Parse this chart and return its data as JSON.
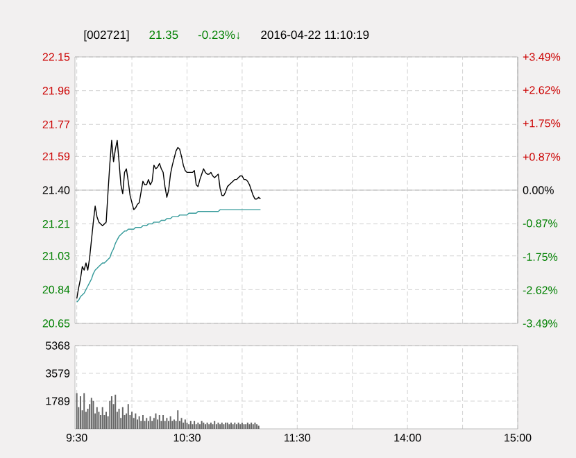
{
  "chart_data": [
    {
      "type": "line",
      "title": "[002721]",
      "annotations": [
        "21.35",
        "-0.23%↓",
        "2016-04-22 11:10:19"
      ],
      "categories": [
        null,
        null,
        null,
        null,
        null,
        null,
        null,
        null,
        null,
        null,
        null,
        null,
        null,
        null,
        null,
        null,
        null,
        null,
        null,
        null,
        null,
        null,
        null,
        null,
        null,
        null,
        null,
        null,
        null,
        null,
        null,
        null,
        null,
        null,
        null,
        null,
        null,
        null,
        null,
        null,
        null,
        null,
        null,
        null,
        null,
        null,
        null,
        null,
        null,
        null,
        null,
        null,
        null,
        null,
        null,
        null,
        null,
        null,
        null,
        null,
        null,
        null,
        null,
        null,
        null,
        null,
        null,
        null,
        null,
        null,
        null,
        null,
        null,
        null,
        null,
        null,
        null,
        null,
        null,
        null,
        null,
        null,
        null,
        null,
        null,
        null,
        null,
        null,
        null,
        null,
        null,
        null,
        null,
        null,
        null,
        null,
        null,
        null,
        null,
        null,
        null,
        null,
        null,
        null,
        null,
        null,
        null,
        null,
        null,
        null,
        null,
        null,
        null,
        null,
        null,
        null,
        null,
        null,
        null,
        null,
        null,
        null,
        null,
        null,
        null,
        null,
        null,
        null,
        null,
        null,
        null,
        null,
        null,
        null,
        null,
        null,
        null,
        null,
        null,
        null,
        null,
        null,
        null,
        null,
        null,
        null,
        null,
        null,
        null,
        null,
        null,
        null,
        null,
        null,
        null,
        null,
        null,
        null,
        null,
        null,
        null,
        null,
        null,
        null,
        null,
        null,
        null,
        null,
        null,
        null,
        null,
        null,
        null,
        null,
        null,
        null,
        null,
        null,
        null,
        null,
        null,
        null,
        null,
        null,
        null,
        null,
        null,
        null,
        null,
        null,
        null,
        null,
        null,
        null,
        null,
        null,
        null,
        null,
        null,
        null,
        null,
        null,
        null,
        null,
        null,
        null,
        null,
        null,
        null,
        null,
        null,
        null,
        null,
        null,
        null,
        null,
        null,
        null,
        null,
        null,
        null,
        null,
        null,
        null,
        null,
        null,
        null,
        null,
        null,
        null,
        null,
        null,
        null,
        null,
        null,
        null,
        null,
        null,
        null,
        null,
        null
      ],
      "ylim": [
        20.65,
        22.15
      ],
      "yticks": [
        20.65,
        20.84,
        21.03,
        21.21,
        {
          "value": 21.4,
          "label": "21.40"
        },
        21.59,
        21.77,
        21.96,
        22.15
      ],
      "y2lim": [
        -3.49,
        3.49
      ],
      "y2ticks": [
        {
          "value": -3.49,
          "label": "-3.49%"
        },
        {
          "value": -2.62,
          "label": "-2.62%"
        },
        {
          "value": -1.75,
          "label": "-1.75%"
        },
        {
          "value": -0.87,
          "label": "-0.87%"
        },
        {
          "value": 0,
          "label": "0.00%"
        },
        {
          "value": 0.87,
          "label": "+0.87%"
        },
        {
          "value": 1.75,
          "label": "+1.75%"
        },
        {
          "value": 2.62,
          "label": "+2.62%"
        },
        {
          "value": 3.49,
          "label": "+3.49%"
        }
      ],
      "grid": true,
      "tick_labels": "y",
      "ref_lines": [
        {
          "axis": "y",
          "value": 21.4,
          "color": "#b0b0b0"
        }
      ],
      "series": [
        {
          "color": "#000000",
          "values": [
            20.79,
            20.85,
            20.9,
            20.97,
            20.95,
            20.99,
            20.95,
            21.02,
            21.12,
            21.22,
            21.31,
            21.25,
            21.22,
            21.21,
            21.2,
            21.21,
            21.22,
            21.39,
            21.55,
            21.68,
            21.56,
            21.63,
            21.68,
            21.56,
            21.43,
            21.38,
            21.5,
            21.52,
            21.45,
            21.37,
            21.33,
            21.29,
            21.3,
            21.32,
            21.33,
            21.39,
            21.45,
            21.43,
            21.43,
            21.46,
            21.43,
            21.45,
            21.54,
            21.52,
            21.53,
            21.55,
            21.52,
            21.5,
            21.42,
            21.36,
            21.4,
            21.49,
            21.54,
            21.58,
            21.62,
            21.64,
            21.63,
            21.59,
            21.54,
            21.51,
            21.5,
            21.5,
            21.5,
            21.5,
            21.51,
            21.43,
            21.42,
            21.46,
            21.49,
            21.52,
            21.5,
            21.49,
            21.49,
            21.5,
            21.48,
            21.47,
            21.48,
            21.49,
            21.41,
            21.37,
            21.37,
            21.39,
            21.42,
            21.43,
            21.44,
            21.45,
            21.46,
            21.46,
            21.47,
            21.48,
            21.48,
            21.46,
            21.46,
            21.45,
            21.43,
            21.4,
            21.37,
            21.35,
            21.35,
            21.36,
            21.35,
            null,
            null,
            null,
            null,
            null,
            null,
            null,
            null,
            null,
            null,
            null,
            null,
            null,
            null,
            null,
            null,
            null,
            null,
            null,
            null,
            null,
            null,
            null,
            null,
            null,
            null,
            null,
            null,
            null,
            null,
            null,
            null,
            null,
            null,
            null,
            null,
            null,
            null,
            null,
            null,
            null,
            null,
            null,
            null,
            null,
            null,
            null,
            null,
            null,
            null,
            null,
            null,
            null,
            null,
            null,
            null,
            null,
            null,
            null,
            null,
            null,
            null,
            null,
            null,
            null,
            null,
            null,
            null,
            null,
            null,
            null,
            null,
            null,
            null,
            null,
            null,
            null,
            null,
            null,
            null,
            null,
            null,
            null,
            null,
            null,
            null,
            null,
            null,
            null,
            null,
            null,
            null,
            null,
            null,
            null,
            null,
            null,
            null,
            null,
            null,
            null,
            null,
            null,
            null,
            null,
            null,
            null,
            null,
            null,
            null,
            null,
            null,
            null,
            null,
            null,
            null,
            null,
            null,
            null,
            null,
            null,
            null,
            null,
            null,
            null,
            null,
            null,
            null,
            null,
            null,
            null,
            null,
            null,
            null,
            null,
            null,
            null,
            null,
            null,
            null
          ]
        },
        {
          "color": "#339999",
          "values": [
            20.77,
            20.78,
            20.8,
            20.81,
            20.82,
            20.84,
            20.86,
            20.88,
            20.9,
            20.93,
            20.95,
            20.96,
            20.97,
            20.98,
            20.99,
            20.99,
            21.0,
            21.01,
            21.02,
            21.05,
            21.07,
            21.1,
            21.12,
            21.14,
            21.15,
            21.16,
            21.17,
            21.17,
            21.18,
            21.18,
            21.18,
            21.18,
            21.19,
            21.19,
            21.19,
            21.19,
            21.2,
            21.2,
            21.2,
            21.21,
            21.21,
            21.21,
            21.22,
            21.22,
            21.22,
            21.22,
            21.23,
            21.23,
            21.23,
            21.24,
            21.24,
            21.24,
            21.25,
            21.25,
            21.25,
            21.25,
            21.26,
            21.26,
            21.26,
            21.26,
            21.26,
            21.27,
            21.27,
            21.27,
            21.27,
            21.27,
            21.28,
            21.28,
            21.28,
            21.28,
            21.28,
            21.28,
            21.28,
            21.28,
            21.28,
            21.28,
            21.28,
            21.28,
            21.29,
            21.29,
            21.29,
            21.29,
            21.29,
            21.29,
            21.29,
            21.29,
            21.29,
            21.29,
            21.29,
            21.29,
            21.29,
            21.29,
            21.29,
            21.29,
            21.29,
            21.29,
            21.29,
            21.29,
            21.29,
            21.29,
            21.29,
            null,
            null,
            null,
            null,
            null,
            null,
            null,
            null,
            null,
            null,
            null,
            null,
            null,
            null,
            null,
            null,
            null,
            null,
            null,
            null,
            null,
            null,
            null,
            null,
            null,
            null,
            null,
            null,
            null,
            null,
            null,
            null,
            null,
            null,
            null,
            null,
            null,
            null,
            null,
            null,
            null,
            null,
            null,
            null,
            null,
            null,
            null,
            null,
            null,
            null,
            null,
            null,
            null,
            null,
            null,
            null,
            null,
            null,
            null,
            null,
            null,
            null,
            null,
            null,
            null,
            null,
            null,
            null,
            null,
            null,
            null,
            null,
            null,
            null,
            null,
            null,
            null,
            null,
            null,
            null,
            null,
            null,
            null,
            null,
            null,
            null,
            null,
            null,
            null,
            null,
            null,
            null,
            null,
            null,
            null,
            null,
            null,
            null,
            null,
            null,
            null,
            null,
            null,
            null,
            null,
            null,
            null,
            null,
            null,
            null,
            null,
            null,
            null,
            null,
            null,
            null,
            null,
            null,
            null,
            null,
            null,
            null,
            null,
            null,
            null,
            null,
            null,
            null,
            null,
            null,
            null,
            null,
            null,
            null,
            null,
            null,
            null,
            null,
            null,
            null
          ]
        }
      ]
    },
    {
      "type": "bar",
      "color": "#666666",
      "categories": [
        "9:30",
        null,
        null,
        null,
        null,
        null,
        null,
        null,
        null,
        null,
        null,
        null,
        null,
        null,
        null,
        null,
        null,
        null,
        null,
        null,
        null,
        null,
        null,
        null,
        null,
        null,
        null,
        null,
        null,
        null,
        null,
        null,
        null,
        null,
        null,
        null,
        null,
        null,
        null,
        null,
        null,
        null,
        null,
        null,
        null,
        null,
        null,
        null,
        null,
        null,
        null,
        null,
        null,
        null,
        null,
        null,
        null,
        null,
        null,
        null,
        "10:30",
        null,
        null,
        null,
        null,
        null,
        null,
        null,
        null,
        null,
        null,
        null,
        null,
        null,
        null,
        null,
        null,
        null,
        null,
        null,
        null,
        null,
        null,
        null,
        null,
        null,
        null,
        null,
        null,
        null,
        null,
        null,
        null,
        null,
        null,
        null,
        null,
        null,
        null,
        null,
        null,
        null,
        null,
        null,
        null,
        null,
        null,
        null,
        null,
        null,
        null,
        null,
        null,
        null,
        null,
        null,
        null,
        null,
        null,
        null,
        "11:30",
        null,
        null,
        null,
        null,
        null,
        null,
        null,
        null,
        null,
        null,
        null,
        null,
        null,
        null,
        null,
        null,
        null,
        null,
        null,
        null,
        null,
        null,
        null,
        null,
        null,
        null,
        null,
        null,
        null,
        null,
        null,
        null,
        null,
        null,
        null,
        null,
        null,
        null,
        null,
        null,
        null,
        null,
        null,
        null,
        null,
        null,
        null,
        null,
        null,
        null,
        null,
        null,
        null,
        null,
        null,
        null,
        null,
        null,
        null,
        "14:00",
        null,
        null,
        null,
        null,
        null,
        null,
        null,
        null,
        null,
        null,
        null,
        null,
        null,
        null,
        null,
        null,
        null,
        null,
        null,
        null,
        null,
        null,
        null,
        null,
        null,
        null,
        null,
        null,
        null,
        null,
        null,
        null,
        null,
        null,
        null,
        null,
        null,
        null,
        null,
        null,
        null,
        null,
        null,
        null,
        null,
        null,
        null,
        null,
        null,
        null,
        null,
        null,
        null,
        null,
        null,
        null,
        null,
        null,
        null,
        "15:00"
      ],
      "ylim": [
        0,
        5368
      ],
      "yticks": [
        1789,
        3579,
        5368
      ],
      "grid": true,
      "values": [
        2300,
        1400,
        2100,
        1200,
        2300,
        1100,
        1300,
        1600,
        2000,
        1800,
        1000,
        1400,
        1100,
        900,
        1400,
        900,
        1100,
        800,
        1800,
        2100,
        1600,
        2200,
        1100,
        1300,
        700,
        1400,
        900,
        1000,
        1600,
        900,
        1100,
        700,
        1000,
        600,
        800,
        500,
        900,
        500,
        700,
        500,
        800,
        500,
        700,
        1000,
        600,
        900,
        500,
        900,
        500,
        700,
        500,
        800,
        500,
        600,
        500,
        1200,
        500,
        700,
        400,
        600,
        400,
        300,
        500,
        300,
        500,
        300,
        400,
        300,
        500,
        400,
        300,
        400,
        300,
        400,
        300,
        500,
        300,
        400,
        300,
        400,
        300,
        400,
        400,
        300,
        400,
        300,
        400,
        300,
        400,
        300,
        400,
        300,
        300,
        400,
        300,
        400,
        300,
        400,
        300,
        200,
        null,
        null,
        null,
        null,
        null,
        null,
        null,
        null,
        null,
        null,
        null,
        null,
        null,
        null,
        null,
        null,
        null,
        null,
        null,
        null,
        null,
        null,
        null,
        null,
        null,
        null,
        null,
        null,
        null,
        null,
        null,
        null,
        null,
        null,
        null,
        null,
        null,
        null,
        null,
        null,
        null,
        null,
        null,
        null,
        null,
        null,
        null,
        null,
        null,
        null,
        null,
        null,
        null,
        null,
        null,
        null,
        null,
        null,
        null,
        null,
        null,
        null,
        null,
        null,
        null,
        null,
        null,
        null,
        null,
        null,
        null,
        null,
        null,
        null,
        null,
        null,
        null,
        null,
        null,
        null,
        null,
        null,
        null,
        null,
        null,
        null,
        null,
        null,
        null,
        null,
        null,
        null,
        null,
        null,
        null,
        null,
        null,
        null,
        null,
        null,
        null,
        null,
        null,
        null,
        null,
        null,
        null,
        null,
        null,
        null,
        null,
        null,
        null,
        null,
        null,
        null,
        null,
        null,
        null,
        null,
        null,
        null,
        null,
        null,
        null,
        null,
        null,
        null,
        null,
        null,
        null,
        null,
        null,
        null,
        null,
        null,
        null,
        null,
        null,
        null,
        null
      ]
    }
  ]
}
